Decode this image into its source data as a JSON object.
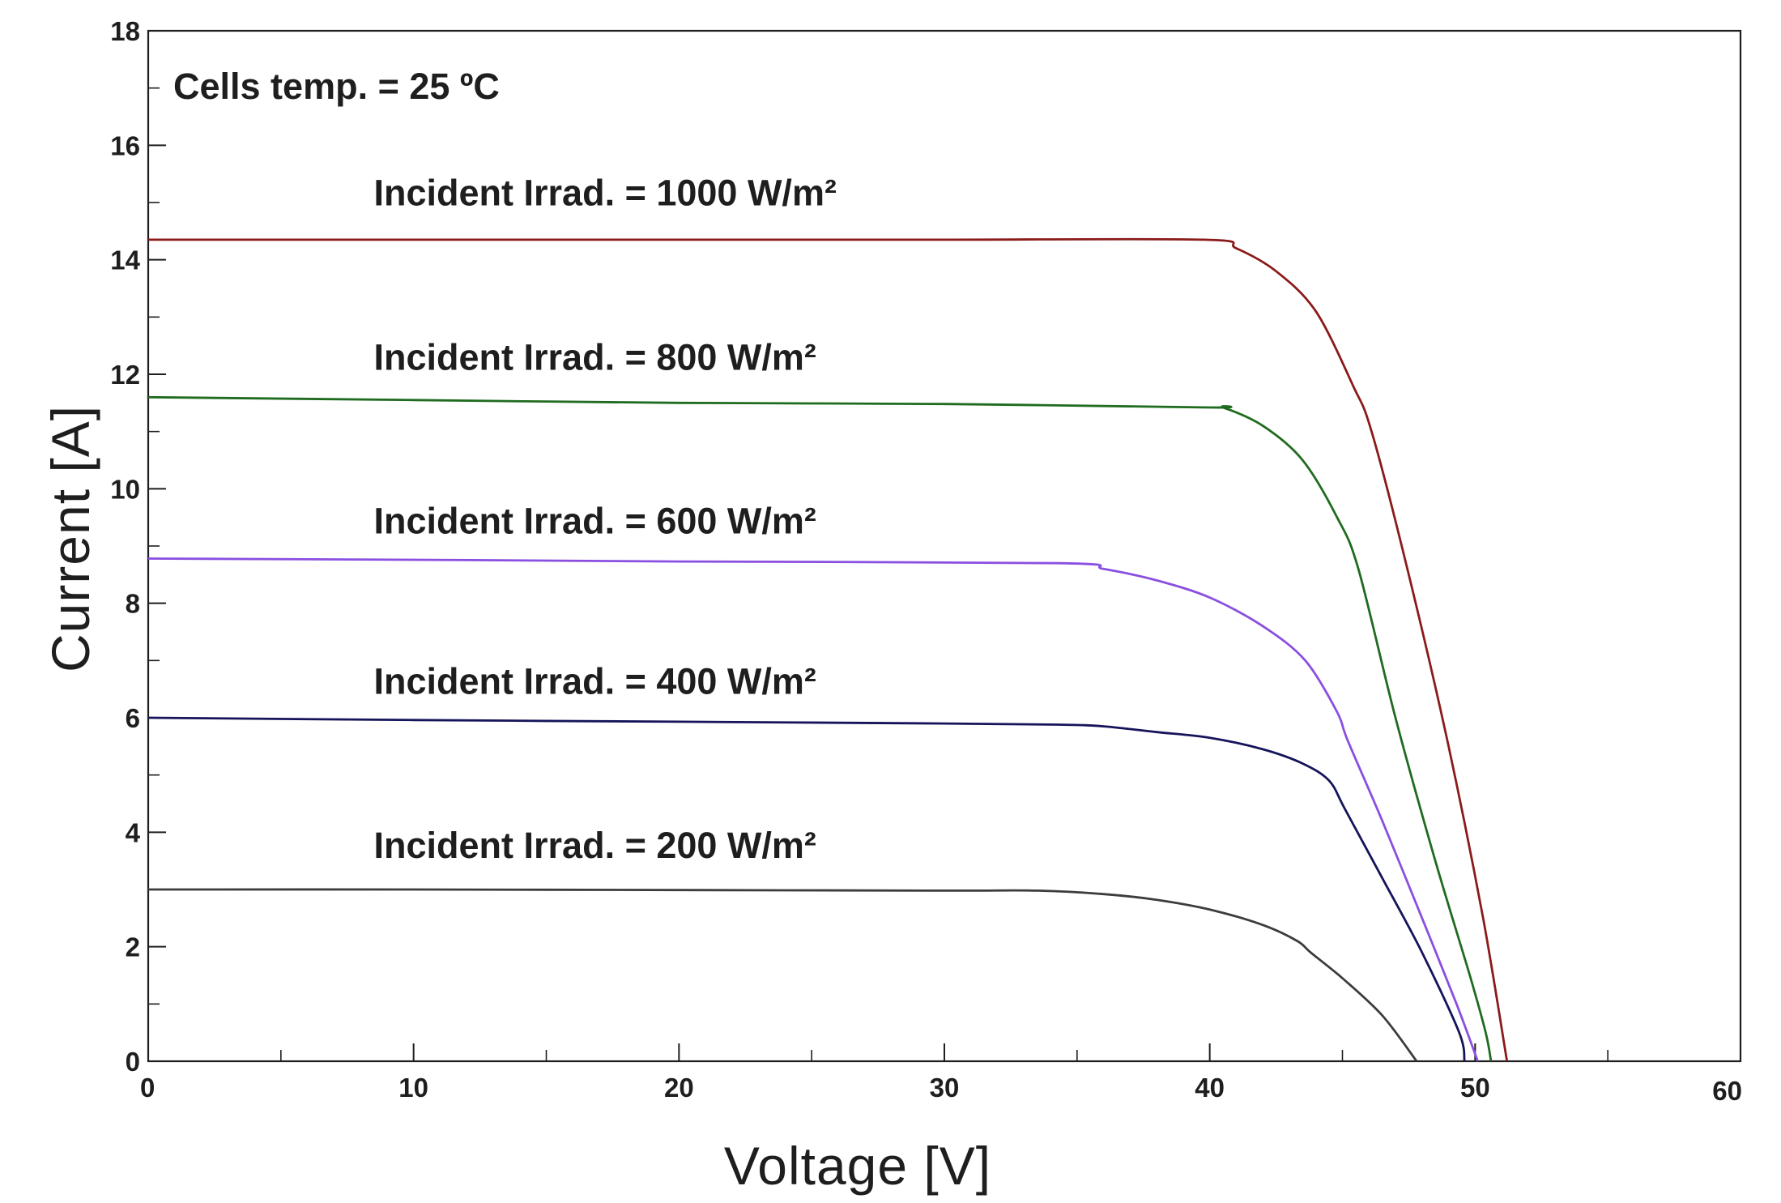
{
  "chart_data": {
    "type": "line",
    "title": "",
    "xlabel": "Voltage [V]",
    "ylabel": "Current [A]",
    "xlim": [
      0,
      60
    ],
    "ylim": [
      0,
      18
    ],
    "grid": false,
    "legend": "none",
    "x_ticks": [
      0,
      10,
      20,
      30,
      40,
      50,
      60
    ],
    "x_minor_ticks": [
      5,
      15,
      25,
      35,
      45,
      55
    ],
    "y_ticks": [
      0,
      2,
      4,
      6,
      8,
      10,
      12,
      14,
      16,
      18
    ],
    "y_minor_ticks": [
      1,
      3,
      5,
      7,
      9,
      11,
      13,
      15,
      17
    ],
    "series": [
      {
        "label": "Incident Irrad. = 1000 W/m²",
        "color": "#8b1a1a",
        "points": [
          [
            0,
            14.35
          ],
          [
            10,
            14.35
          ],
          [
            20,
            14.35
          ],
          [
            30,
            14.35
          ],
          [
            39.8,
            14.35
          ],
          [
            41,
            14.2
          ],
          [
            42.5,
            13.8
          ],
          [
            44,
            13.1
          ],
          [
            45.4,
            11.8
          ],
          [
            46.1,
            11.0
          ],
          [
            47.5,
            8.5
          ],
          [
            49,
            5.5
          ],
          [
            50.3,
            2.5
          ],
          [
            51.2,
            0
          ]
        ]
      },
      {
        "label": "Incident Irrad. = 800 W/m²",
        "color": "#1f6b1f",
        "points": [
          [
            0,
            11.6
          ],
          [
            10,
            11.55
          ],
          [
            20,
            11.5
          ],
          [
            30,
            11.48
          ],
          [
            40,
            11.42
          ],
          [
            40.5,
            11.42
          ],
          [
            42,
            11.1
          ],
          [
            43.5,
            10.5
          ],
          [
            44.8,
            9.5
          ],
          [
            45.6,
            8.6
          ],
          [
            47,
            6
          ],
          [
            48.5,
            3.5
          ],
          [
            49.8,
            1.5
          ],
          [
            50.4,
            0.5
          ],
          [
            50.6,
            0
          ]
        ]
      },
      {
        "label": "Incident Irrad. = 600 W/m²",
        "color": "#8a4fe0",
        "points": [
          [
            0,
            8.78
          ],
          [
            10,
            8.76
          ],
          [
            20,
            8.73
          ],
          [
            34.3,
            8.7
          ],
          [
            36,
            8.6
          ],
          [
            38,
            8.4
          ],
          [
            40,
            8.1
          ],
          [
            42,
            7.6
          ],
          [
            43.6,
            7.0
          ],
          [
            44.8,
            6.1
          ],
          [
            45.2,
            5.6
          ],
          [
            46.5,
            4.2
          ],
          [
            48,
            2.5
          ],
          [
            49.3,
            1.0
          ],
          [
            50.1,
            0
          ]
        ]
      },
      {
        "label": "Incident Irrad. = 400 W/m²",
        "color": "#15145a",
        "points": [
          [
            0,
            6.0
          ],
          [
            10,
            5.96
          ],
          [
            20,
            5.93
          ],
          [
            30,
            5.9
          ],
          [
            34.3,
            5.88
          ],
          [
            36,
            5.85
          ],
          [
            38,
            5.75
          ],
          [
            40,
            5.65
          ],
          [
            42,
            5.45
          ],
          [
            43.5,
            5.2
          ],
          [
            44.5,
            4.9
          ],
          [
            45.1,
            4.4
          ],
          [
            46.5,
            3.2
          ],
          [
            48,
            1.9
          ],
          [
            49.4,
            0.5
          ],
          [
            49.6,
            0
          ]
        ]
      },
      {
        "label": "Incident Irrad. = 200 W/m²",
        "color": "#3c3c3c",
        "points": [
          [
            0,
            3.0
          ],
          [
            10,
            3.0
          ],
          [
            20,
            2.99
          ],
          [
            30,
            2.98
          ],
          [
            33.5,
            2.98
          ],
          [
            36,
            2.92
          ],
          [
            38,
            2.82
          ],
          [
            40,
            2.65
          ],
          [
            42,
            2.38
          ],
          [
            43.3,
            2.1
          ],
          [
            43.8,
            1.9
          ],
          [
            45,
            1.45
          ],
          [
            46.5,
            0.8
          ],
          [
            47.8,
            0
          ]
        ]
      }
    ],
    "annotations": {
      "temperature": "Cells temp. = 25 ºC",
      "labels": [
        {
          "series": 0,
          "text": "Incident Irrad. = 1000 W/m²",
          "x": 8.5,
          "y": 14.95
        },
        {
          "series": 1,
          "text": "Incident Irrad. = 800 W/m²",
          "x": 8.5,
          "y": 12.08
        },
        {
          "series": 2,
          "text": "Incident Irrad. = 600 W/m²",
          "x": 8.5,
          "y": 9.22
        },
        {
          "series": 3,
          "text": "Incident Irrad. = 400 W/m²",
          "x": 8.5,
          "y": 6.42
        },
        {
          "series": 4,
          "text": "Incident Irrad. = 200 W/m²",
          "x": 8.5,
          "y": 3.55
        }
      ]
    }
  }
}
